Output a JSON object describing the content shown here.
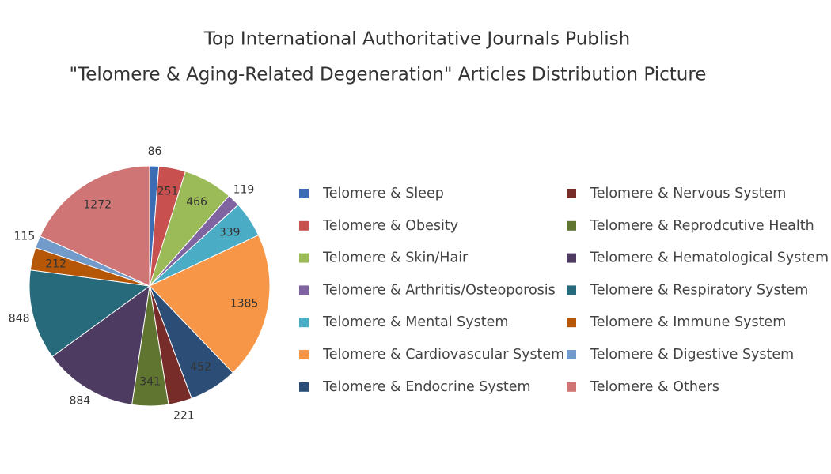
{
  "chart_data": {
    "type": "pie",
    "title": [
      "Top International Authoritative Journals Publish",
      "\"Telomere & Aging-Related Degeneration\" Articles Distribution Picture"
    ],
    "categories": [
      "Telomere & Sleep",
      "Telomere & Obesity",
      "Telomere & Skin/Hair",
      "Telomere & Arthritis/Osteoporosis",
      "Telomere & Mental System",
      "Telomere & Cardiovascular System",
      "Telomere & Endocrine System",
      "Telomere & Nervous System",
      "Telomere & Reprodcutive Health",
      "Telomere & Hematological System",
      "Telomere & Respiratory System",
      "Telomere & Immune System",
      "Telomere & Digestive System",
      "Telomere & Others"
    ],
    "values": [
      86,
      251,
      466,
      119,
      339,
      1385,
      452,
      221,
      341,
      884,
      848,
      212,
      115,
      1272
    ],
    "colors": [
      "#3c6cb4",
      "#c8504e",
      "#9bbb59",
      "#8064a2",
      "#4bacc6",
      "#f79646",
      "#2c4d75",
      "#772c2a",
      "#5f7530",
      "#4d3b62",
      "#276a7c",
      "#b65708",
      "#729aca",
      "#d07575"
    ],
    "legend": "right"
  }
}
